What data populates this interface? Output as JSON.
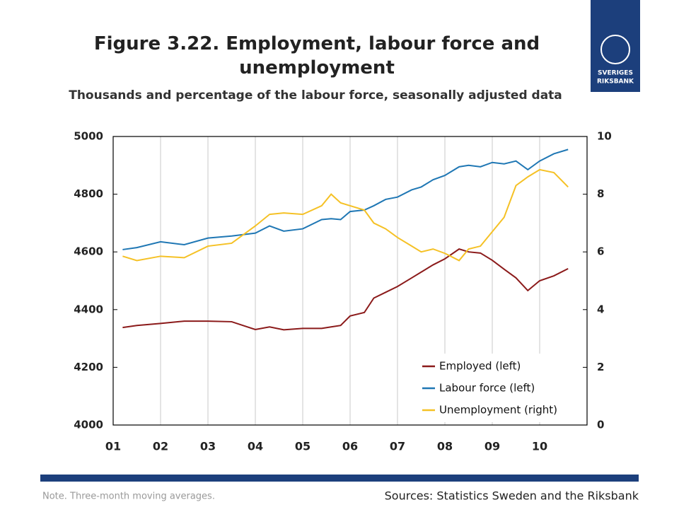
{
  "chart_data": {
    "type": "line",
    "title": "Figure 3.22. Employment, labour force and unemployment",
    "subtitle": "Thousands and percentage of the labour force, seasonally adjusted data",
    "note": "Note. Three-month moving averages.",
    "source": "Sources: Statistics Sweden and the Riksbank",
    "logo": [
      "SVERIGES",
      "RIKSBANK"
    ],
    "x": [
      2001.2,
      2001.5,
      2002,
      2002.5,
      2003,
      2003.5,
      2004,
      2004.3,
      2004.6,
      2005,
      2005.4,
      2005.6,
      2005.8,
      2006,
      2006.3,
      2006.5,
      2006.75,
      2007,
      2007.3,
      2007.5,
      2007.75,
      2008,
      2008.3,
      2008.5,
      2008.75,
      2009,
      2009.25,
      2009.5,
      2009.75,
      2010,
      2010.3,
      2010.6
    ],
    "series": [
      {
        "name": "Employed (left)",
        "color": "#8b1a1a",
        "axis": "y",
        "values": [
          4338,
          4345,
          4352,
          4360,
          4360,
          4358,
          4331,
          4340,
          4330,
          4335,
          4335,
          4340,
          4345,
          4378,
          4390,
          4440,
          4460,
          4480,
          4510,
          4530,
          4555,
          4576,
          4610,
          4600,
          4596,
          4571,
          4540,
          4510,
          4466,
          4500,
          4517,
          4542
        ]
      },
      {
        "name": "Labour force (left)",
        "color": "#1f77b4",
        "axis": "y",
        "values": [
          4608,
          4615,
          4635,
          4625,
          4648,
          4655,
          4665,
          4690,
          4672,
          4680,
          4712,
          4715,
          4712,
          4740,
          4745,
          4760,
          4782,
          4790,
          4815,
          4825,
          4850,
          4865,
          4895,
          4900,
          4895,
          4910,
          4905,
          4915,
          4885,
          4915,
          4940,
          4955
        ]
      },
      {
        "name": "Unemployment (right)",
        "color": "#f5c125",
        "axis": "y2",
        "values": [
          5.85,
          5.7,
          5.85,
          5.8,
          6.2,
          6.3,
          6.9,
          7.3,
          7.35,
          7.3,
          7.6,
          8.0,
          7.7,
          7.6,
          7.45,
          7.0,
          6.8,
          6.5,
          6.2,
          6.0,
          6.1,
          5.95,
          5.7,
          6.1,
          6.2,
          6.7,
          7.2,
          8.3,
          8.6,
          8.85,
          8.75,
          8.25
        ]
      }
    ],
    "xlim": [
      2001,
      2011
    ],
    "xticks": [
      {
        "value": 2001,
        "label": "01"
      },
      {
        "value": 2002,
        "label": "02"
      },
      {
        "value": 2003,
        "label": "03"
      },
      {
        "value": 2004,
        "label": "04"
      },
      {
        "value": 2005,
        "label": "05"
      },
      {
        "value": 2006,
        "label": "06"
      },
      {
        "value": 2007,
        "label": "07"
      },
      {
        "value": 2008,
        "label": "08"
      },
      {
        "value": 2009,
        "label": "09"
      },
      {
        "value": 2010,
        "label": "10"
      }
    ],
    "ylim": [
      4000,
      5000
    ],
    "yticks": [
      4000,
      4200,
      4400,
      4600,
      4800,
      5000
    ],
    "y2lim": [
      0,
      10
    ],
    "y2ticks": [
      0,
      2,
      4,
      6,
      8,
      10
    ],
    "grid": "x",
    "legend": "lower right"
  }
}
